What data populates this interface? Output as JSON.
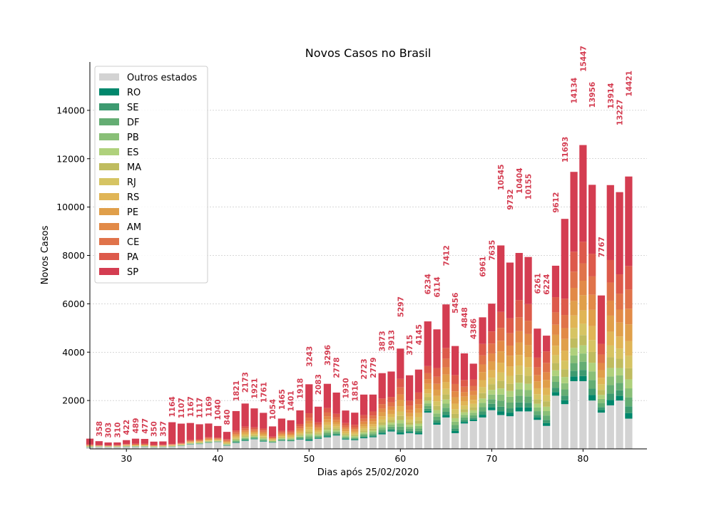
{
  "chart_data": {
    "type": "bar",
    "stacked": true,
    "title": "Novos Casos no Brasil",
    "xlabel": "Dias após 25/02/2020",
    "ylabel": "Novos Casos",
    "xlim": [
      26,
      87
    ],
    "ylim": [
      0,
      16000
    ],
    "xticks": [
      30,
      40,
      50,
      60,
      70,
      80
    ],
    "yticks": [
      2000,
      4000,
      6000,
      8000,
      10000,
      12000,
      14000
    ],
    "grid": "horizontal",
    "legend": "top-left",
    "label_color": "#d43d51",
    "series": [
      {
        "name": "Outros estados",
        "color": "#d3d3d3"
      },
      {
        "name": "RO",
        "color": "#00876c"
      },
      {
        "name": "SE",
        "color": "#3d9a70"
      },
      {
        "name": "DF",
        "color": "#64ad73"
      },
      {
        "name": "PB",
        "color": "#89bf77"
      },
      {
        "name": "ES",
        "color": "#afd17c"
      },
      {
        "name": "MA",
        "color": "#bfbc5f"
      },
      {
        "name": "RJ",
        "color": "#d6c463"
      },
      {
        "name": "RS",
        "color": "#e0b556"
      },
      {
        "name": "PE",
        "color": "#e09f4a"
      },
      {
        "name": "AM",
        "color": "#e28a47"
      },
      {
        "name": "CE",
        "color": "#e0734a"
      },
      {
        "name": "PA",
        "color": "#dd5a4b"
      },
      {
        "name": "SP",
        "color": "#d43d51"
      }
    ],
    "x": [
      26,
      27,
      28,
      29,
      30,
      31,
      32,
      33,
      34,
      35,
      36,
      37,
      38,
      39,
      40,
      41,
      42,
      43,
      44,
      45,
      46,
      47,
      48,
      49,
      50,
      51,
      52,
      53,
      54,
      55,
      56,
      57,
      58,
      59,
      60,
      61,
      62,
      63,
      64,
      65,
      66,
      67,
      68,
      69,
      70,
      71,
      72,
      73,
      74,
      75,
      76,
      77,
      78,
      79,
      80,
      81,
      82,
      83,
      84,
      85
    ],
    "totals": [
      485,
      358,
      303,
      310,
      422,
      489,
      477,
      350,
      357,
      1164,
      1107,
      1167,
      1117,
      1169,
      1040,
      840,
      1821,
      2173,
      1921,
      1761,
      1054,
      1465,
      1401,
      1918,
      3243,
      2083,
      3296,
      2778,
      1930,
      1816,
      2723,
      2779,
      3873,
      3913,
      5297,
      3715,
      4145,
      6234,
      6114,
      7412,
      5456,
      4848,
      4386,
      6961,
      7635,
      10545,
      9732,
      10404,
      10155,
      6261,
      6224,
      9612,
      11693,
      14134,
      15447,
      13956,
      7767,
      13914,
      13227,
      14421
    ],
    "shown_labels": [
      null,
      358,
      303,
      310,
      422,
      489,
      477,
      350,
      357,
      1164,
      1107,
      1167,
      1117,
      1169,
      1040,
      840,
      1821,
      2173,
      1921,
      1761,
      1054,
      1465,
      1401,
      1918,
      3243,
      2083,
      3296,
      2778,
      1930,
      1816,
      2723,
      2779,
      3873,
      3913,
      5297,
      3715,
      4145,
      6234,
      6114,
      7412,
      5456,
      4848,
      4386,
      6961,
      7635,
      10545,
      9732,
      10404,
      10155,
      6261,
      6224,
      9612,
      11693,
      14134,
      15447,
      13956,
      7767,
      13914,
      13227,
      14421
    ],
    "sp": [
      240,
      160,
      120,
      110,
      160,
      210,
      200,
      140,
      140,
      900,
      800,
      700,
      620,
      560,
      480,
      300,
      800,
      950,
      780,
      650,
      420,
      500,
      430,
      560,
      1200,
      650,
      1000,
      880,
      520,
      500,
      850,
      700,
      1050,
      1050,
      1250,
      1050,
      950,
      1850,
      1600,
      1800,
      1200,
      1100,
      650,
      1100,
      1150,
      2750,
      2300,
      1950,
      1950,
      1200,
      650,
      1300,
      3300,
      3300,
      4000,
      2850,
      2000,
      3100,
      3400,
      3700
    ],
    "others": [
      60,
      80,
      70,
      70,
      80,
      80,
      80,
      60,
      70,
      80,
      120,
      180,
      200,
      250,
      280,
      130,
      250,
      330,
      400,
      300,
      260,
      330,
      320,
      380,
      330,
      420,
      480,
      550,
      380,
      360,
      440,
      480,
      600,
      720,
      600,
      650,
      600,
      1500,
      1000,
      1300,
      650,
      1050,
      1150,
      1300,
      1600,
      1400,
      1350,
      1550,
      1550,
      1200,
      950,
      2200,
      1850,
      2800,
      2800,
      2000,
      1500,
      1800,
      2000,
      1250
    ],
    "weights": [
      0.5,
      0.6,
      0.8,
      0.8,
      0.8,
      1,
      1.1,
      1.3,
      1.5,
      1.4,
      1.7,
      2.1,
      2.3,
      2.3,
      2.2
    ]
  }
}
